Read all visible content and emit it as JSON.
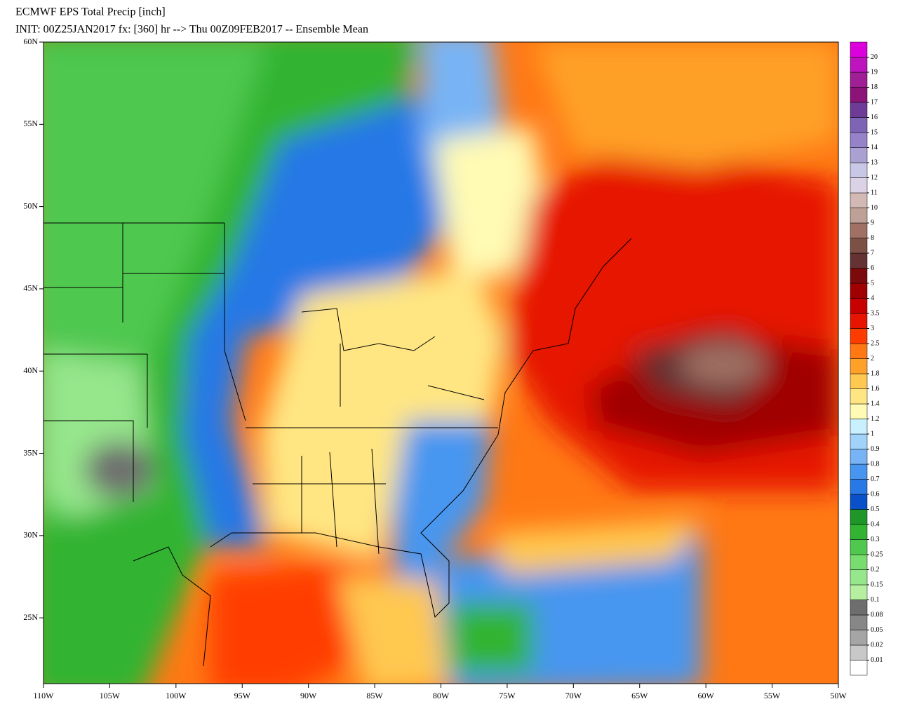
{
  "title": "ECMWF EPS Total Precip [inch]",
  "subtitle": "INIT: 00Z25JAN2017 fx: [360] hr --> Thu 00Z09FEB2017 -- Ensemble Mean",
  "map": {
    "xlim": [
      -110,
      -50
    ],
    "ylim": [
      21,
      60
    ],
    "xticks": [
      {
        "value": -110,
        "label": "110W"
      },
      {
        "value": -105,
        "label": "105W"
      },
      {
        "value": -100,
        "label": "100W"
      },
      {
        "value": -95,
        "label": "95W"
      },
      {
        "value": -90,
        "label": "90W"
      },
      {
        "value": -85,
        "label": "85W"
      },
      {
        "value": -80,
        "label": "80W"
      },
      {
        "value": -75,
        "label": "75W"
      },
      {
        "value": -70,
        "label": "70W"
      },
      {
        "value": -65,
        "label": "65W"
      },
      {
        "value": -60,
        "label": "60W"
      },
      {
        "value": -55,
        "label": "55W"
      },
      {
        "value": -50,
        "label": "50W"
      }
    ],
    "yticks": [
      {
        "value": 25,
        "label": "25N"
      },
      {
        "value": 30,
        "label": "30N"
      },
      {
        "value": 35,
        "label": "35N"
      },
      {
        "value": 40,
        "label": "40N"
      },
      {
        "value": 45,
        "label": "45N"
      },
      {
        "value": 50,
        "label": "50N"
      },
      {
        "value": 55,
        "label": "55N"
      },
      {
        "value": 60,
        "label": "60N"
      }
    ]
  },
  "colorbar": {
    "levels": [
      0.01,
      0.02,
      0.05,
      0.08,
      0.1,
      0.15,
      0.2,
      0.25,
      0.3,
      0.4,
      0.5,
      0.6,
      0.7,
      0.8,
      0.9,
      1,
      1.2,
      1.4,
      1.6,
      1.8,
      2,
      2.5,
      3,
      3.5,
      4,
      5,
      6,
      7,
      8,
      9,
      10,
      11,
      12,
      13,
      14,
      15,
      16,
      17,
      18,
      19,
      20
    ],
    "colors": [
      "#ffffff",
      "#c8c8c8",
      "#a5a5a5",
      "#878787",
      "#6e6e6e",
      "#b4f0a0",
      "#96e68c",
      "#78dc6e",
      "#50c850",
      "#32b432",
      "#1e9628",
      "#0a50c8",
      "#2878e6",
      "#4696f0",
      "#78b4f5",
      "#a0d2fa",
      "#c8f0ff",
      "#fffab4",
      "#ffe682",
      "#ffc850",
      "#ffa028",
      "#ff7814",
      "#ff3c00",
      "#e61400",
      "#c80000",
      "#a00000",
      "#7d0a0a",
      "#643232",
      "#7d5046",
      "#a07064",
      "#bea096",
      "#d2b9b4",
      "#dcd2e6",
      "#c8c8e6",
      "#aaa0d2",
      "#9682c8",
      "#7d64b4",
      "#6e3c96",
      "#8c1478",
      "#a01e96",
      "#be14be",
      "#dc00dc"
    ]
  }
}
